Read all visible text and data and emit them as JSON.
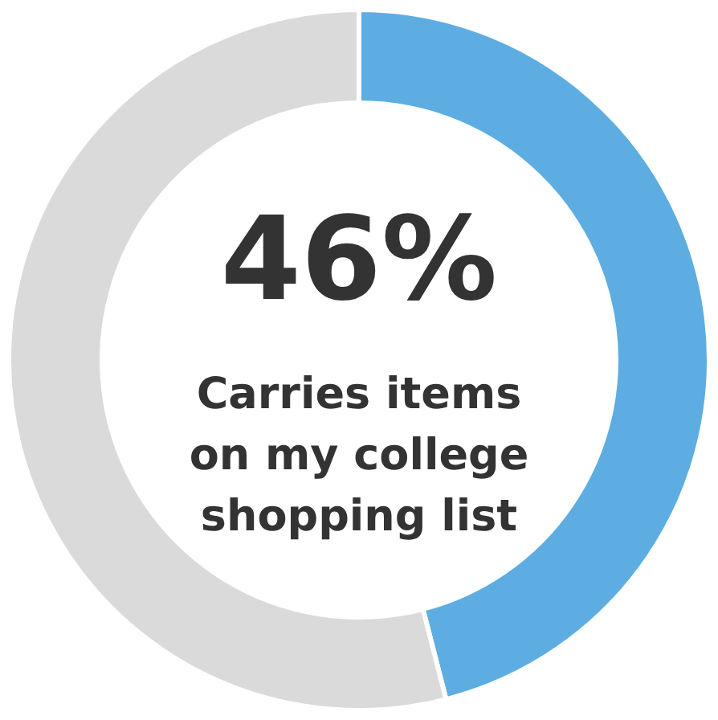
{
  "chart_data": {
    "type": "donut",
    "categories": [
      null,
      null
    ],
    "annotations": [
      "Carries items on my college shopping list"
    ],
    "values": [
      46,
      54
    ],
    "colors": [
      "#5dade2",
      "#dadada"
    ],
    "value_labels": [
      "46%",
      null
    ]
  }
}
